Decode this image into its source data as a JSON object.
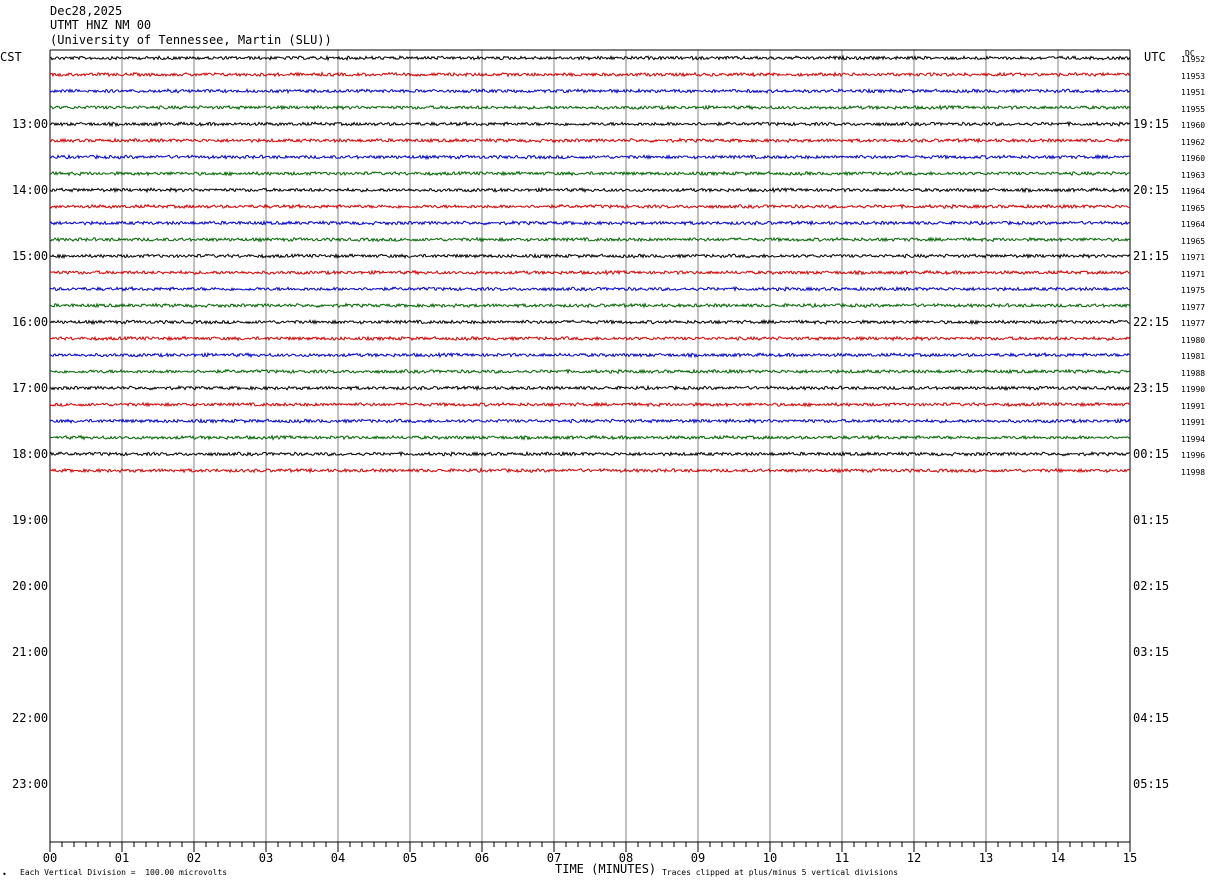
{
  "header": {
    "date": "Dec28,2025",
    "station": "UTMT HNZ NM 00",
    "network": "(University of Tennessee, Martin (SLU))"
  },
  "left_axis_label": "CST",
  "right_axis_label": "UTC",
  "dc_label": "DC",
  "footer": {
    "scale_note": "Each Vertical Division =  100.00 microvolts",
    "clip_note": "Traces clipped at plus/minus 5 vertical divisions",
    "corner_mark": "•"
  },
  "colors": {
    "trace_cycle": [
      "#000000",
      "#d40000",
      "#0000cc",
      "#006600"
    ],
    "grid": "#808080",
    "axis": "#000000"
  },
  "chart_data": {
    "type": "line",
    "subtype": "helicorder",
    "xlabel": "TIME (MINUTES)",
    "x_ticks": [
      "00",
      "01",
      "02",
      "03",
      "04",
      "05",
      "06",
      "07",
      "08",
      "09",
      "10",
      "11",
      "12",
      "13",
      "14",
      "15"
    ],
    "xlim": [
      0,
      15
    ],
    "left_hour_labels": [
      "13:00",
      "14:00",
      "15:00",
      "16:00",
      "17:00",
      "18:00",
      "19:00",
      "20:00",
      "21:00",
      "22:00",
      "23:00"
    ],
    "right_hour_labels": [
      "19:15",
      "20:15",
      "21:15",
      "22:15",
      "23:15",
      "00:15",
      "01:15",
      "02:15",
      "03:15",
      "04:15",
      "05:15"
    ],
    "traces_per_hour": 4,
    "trace_dc_offsets": [
      11952,
      11953,
      11951,
      11955,
      11960,
      11962,
      11960,
      11963,
      11964,
      11965,
      11964,
      11965,
      11971,
      11971,
      11975,
      11977,
      11977,
      11980,
      11981,
      11988,
      11990,
      11991,
      11991,
      11994,
      11996,
      11998
    ],
    "grid": true
  }
}
